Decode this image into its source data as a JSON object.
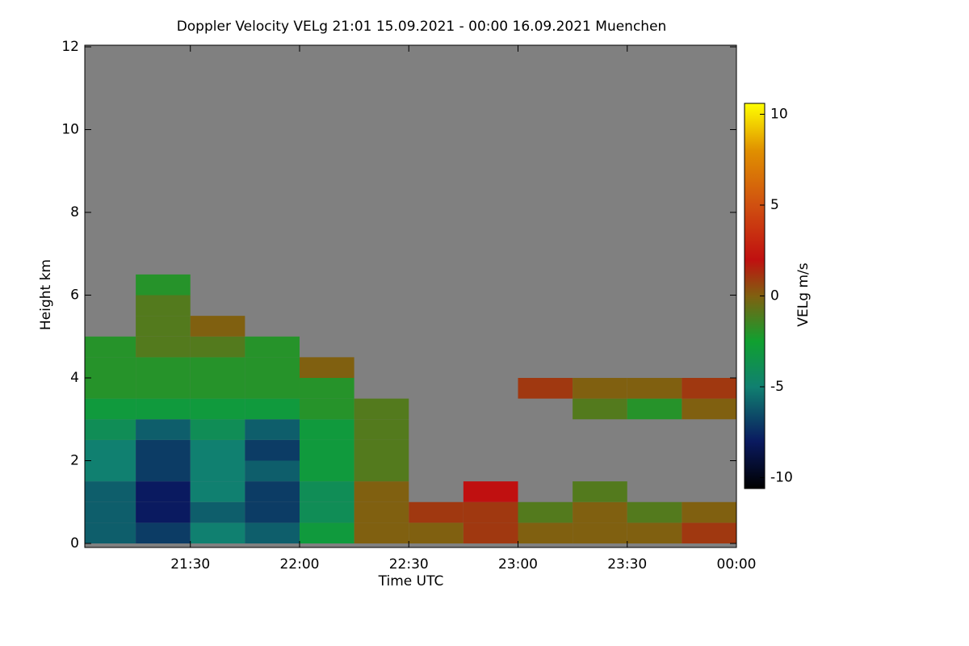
{
  "chart_data": {
    "type": "heatmap",
    "title": "Doppler Velocity VELg   21:01 15.09.2021 - 00:00 16.09.2021 Muenchen",
    "x_label": "Time UTC",
    "y_label": "Height km",
    "colorbar_label": "VELg m/s",
    "xlim": [
      21.0167,
      24.0
    ],
    "xticks": [
      {
        "value": 21.5,
        "label": "21:30"
      },
      {
        "value": 22.0,
        "label": "22:00"
      },
      {
        "value": 22.5,
        "label": "22:30"
      },
      {
        "value": 23.0,
        "label": "23:00"
      },
      {
        "value": 23.5,
        "label": "23:30"
      },
      {
        "value": 24.0,
        "label": "00:00"
      }
    ],
    "ylim": [
      0,
      12
    ],
    "yticks": [
      0,
      2,
      4,
      6,
      8,
      10,
      12
    ],
    "zlim": [
      -10.6,
      10.6
    ],
    "zticks": [
      -10,
      -5,
      0,
      5,
      10
    ],
    "background": "#808080",
    "colormap": [
      [
        -10.6,
        "#000000"
      ],
      [
        -8,
        "#0a1a60"
      ],
      [
        -5,
        "#108070"
      ],
      [
        -2.5,
        "#10a030"
      ],
      [
        0,
        "#806010"
      ],
      [
        2,
        "#c01010"
      ],
      [
        5,
        "#d05010"
      ],
      [
        8,
        "#e09000"
      ],
      [
        10.6,
        "#ffff00"
      ]
    ],
    "x_edges": [
      21.0167,
      21.25,
      21.5,
      21.75,
      22.0,
      22.25,
      22.5,
      22.75,
      23.0,
      23.25,
      23.5,
      23.75,
      24.0
    ],
    "y_edges": [
      0,
      0.5,
      1,
      1.5,
      2,
      2.5,
      3,
      3.5,
      4,
      4.5,
      5,
      5.5,
      6,
      6.5
    ],
    "z": [
      [
        -6,
        -7,
        -5,
        -6,
        -3,
        0,
        0,
        1,
        0,
        0,
        0,
        1
      ],
      [
        -6,
        -8,
        -6,
        -7,
        -4,
        0,
        1,
        1,
        -1,
        0,
        -1,
        0
      ],
      [
        -6,
        -8,
        -5,
        -7,
        -4,
        0,
        null,
        2,
        null,
        -1,
        null,
        null
      ],
      [
        -5,
        -7,
        -5,
        -6,
        -3,
        -1,
        null,
        null,
        null,
        null,
        null,
        null
      ],
      [
        -5,
        -7,
        -5,
        -7,
        -3,
        -1,
        null,
        null,
        null,
        null,
        null,
        null
      ],
      [
        -4,
        -6,
        -4,
        -6,
        -3,
        -1,
        null,
        null,
        null,
        null,
        null,
        null
      ],
      [
        -3,
        -3,
        -3,
        -3,
        -2,
        -1,
        null,
        null,
        null,
        -1,
        -2,
        0
      ],
      [
        -2,
        -2,
        -2,
        -2,
        -2,
        null,
        null,
        null,
        1,
        0,
        0,
        1
      ],
      [
        -2,
        -2,
        -2,
        -2,
        0,
        null,
        null,
        null,
        null,
        null,
        null,
        null
      ],
      [
        -2,
        -1,
        -1,
        -2,
        null,
        null,
        null,
        null,
        null,
        null,
        null,
        null
      ],
      [
        null,
        -1,
        0,
        null,
        null,
        null,
        null,
        null,
        null,
        null,
        null,
        null
      ],
      [
        null,
        -1,
        null,
        null,
        null,
        null,
        null,
        null,
        null,
        null,
        null,
        null
      ],
      [
        null,
        -2,
        null,
        null,
        null,
        null,
        null,
        null,
        null,
        null,
        null,
        null
      ]
    ]
  }
}
